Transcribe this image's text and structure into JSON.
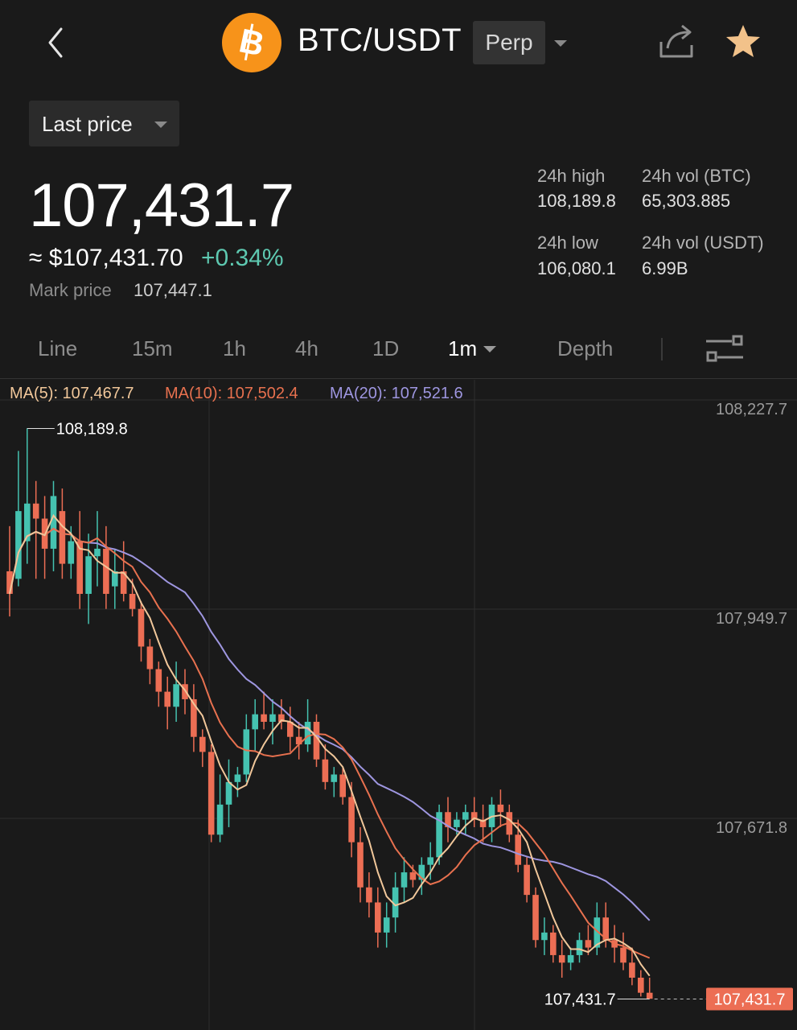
{
  "header": {
    "pair": "BTC/USDT",
    "contract_type": "Perp",
    "icons": [
      "back-icon",
      "bitcoin-icon",
      "chevron-down-icon",
      "share-icon",
      "star-icon"
    ],
    "coin_color": "#f7931a",
    "star_color": "#f2c28a"
  },
  "price_selector": {
    "label": "Last price"
  },
  "price": {
    "last": "107,431.7",
    "usd": "≈ $107,431.70",
    "change": "+0.34%",
    "mark_label": "Mark price",
    "mark_value": "107,447.1"
  },
  "stats": {
    "high_label": "24h high",
    "high_value": "108,189.8",
    "low_label": "24h low",
    "low_value": "106,080.1",
    "vol_btc_label": "24h vol (BTC)",
    "vol_btc_value": "65,303.885",
    "vol_usdt_label": "24h vol (USDT)",
    "vol_usdt_value": "6.99B"
  },
  "tabs": [
    "Line",
    "15m",
    "1h",
    "4h",
    "1D",
    "1m",
    "Depth"
  ],
  "active_tab": "1m",
  "ma_legend": {
    "ma5": "MA(5): 107,467.7",
    "ma10": "MA(10): 107,502.4",
    "ma20": "MA(20): 107,521.6"
  },
  "colors": {
    "up": "#45c2b0",
    "down": "#ec6e54",
    "ma5": "#f1c79a",
    "ma10": "#e8714f",
    "ma20": "#9e96e0"
  },
  "chart_data": {
    "type": "candlestick",
    "y_ticks": [
      "108,227.7",
      "107,949.7",
      "107,671.8"
    ],
    "ylim": [
      107393.7,
      108227.7
    ],
    "high_label": "108,189.8",
    "low_label": "107,431.7",
    "current_price_label": "107,431.7",
    "candles": [
      [
        108000,
        108060,
        107940,
        107970
      ],
      [
        107990,
        108160,
        107980,
        108080
      ],
      [
        108040,
        108190,
        108010,
        108090
      ],
      [
        108090,
        108120,
        107990,
        108070
      ],
      [
        108070,
        108100,
        107990,
        108030
      ],
      [
        108030,
        108120,
        108000,
        108100
      ],
      [
        108080,
        108110,
        107990,
        108010
      ],
      [
        108010,
        108060,
        107990,
        108040
      ],
      [
        108040,
        108080,
        107950,
        107970
      ],
      [
        107970,
        108050,
        107930,
        108020
      ],
      [
        108020,
        108080,
        107980,
        108030
      ],
      [
        108030,
        108060,
        107950,
        107970
      ],
      [
        107980,
        108030,
        107950,
        108000
      ],
      [
        108000,
        108040,
        107960,
        107970
      ],
      [
        107970,
        107990,
        107940,
        107950
      ],
      [
        107950,
        107960,
        107880,
        107900
      ],
      [
        107900,
        107910,
        107850,
        107870
      ],
      [
        107870,
        107880,
        107820,
        107840
      ],
      [
        107840,
        107860,
        107790,
        107820
      ],
      [
        107820,
        107880,
        107800,
        107850
      ],
      [
        107850,
        107870,
        107810,
        107830
      ],
      [
        107830,
        107850,
        107760,
        107780
      ],
      [
        107780,
        107790,
        107740,
        107760
      ],
      [
        107760,
        107770,
        107640,
        107650
      ],
      [
        107650,
        107730,
        107640,
        107690
      ],
      [
        107690,
        107750,
        107660,
        107720
      ],
      [
        107720,
        107740,
        107700,
        107730
      ],
      [
        107730,
        107810,
        107720,
        107790
      ],
      [
        107790,
        107830,
        107760,
        107810
      ],
      [
        107810,
        107840,
        107790,
        107800
      ],
      [
        107800,
        107830,
        107770,
        107810
      ],
      [
        107810,
        107830,
        107790,
        107800
      ],
      [
        107800,
        107820,
        107760,
        107780
      ],
      [
        107780,
        107800,
        107750,
        107770
      ],
      [
        107770,
        107830,
        107760,
        107800
      ],
      [
        107800,
        107810,
        107740,
        107750
      ],
      [
        107750,
        107770,
        107710,
        107720
      ],
      [
        107720,
        107740,
        107700,
        107730
      ],
      [
        107730,
        107740,
        107690,
        107700
      ],
      [
        107700,
        107720,
        107620,
        107640
      ],
      [
        107640,
        107660,
        107560,
        107580
      ],
      [
        107580,
        107600,
        107540,
        107560
      ],
      [
        107560,
        107580,
        107500,
        107520
      ],
      [
        107520,
        107560,
        107500,
        107540
      ],
      [
        107540,
        107600,
        107520,
        107580
      ],
      [
        107580,
        107620,
        107560,
        107600
      ],
      [
        107600,
        107610,
        107580,
        107590
      ],
      [
        107590,
        107620,
        107570,
        107610
      ],
      [
        107610,
        107640,
        107590,
        107620
      ],
      [
        107620,
        107690,
        107610,
        107680
      ],
      [
        107680,
        107700,
        107640,
        107660
      ],
      [
        107660,
        107680,
        107650,
        107670
      ],
      [
        107670,
        107690,
        107650,
        107680
      ],
      [
        107680,
        107700,
        107660,
        107670
      ],
      [
        107670,
        107690,
        107640,
        107660
      ],
      [
        107660,
        107700,
        107640,
        107690
      ],
      [
        107690,
        107710,
        107660,
        107680
      ],
      [
        107680,
        107690,
        107640,
        107650
      ],
      [
        107650,
        107670,
        107600,
        107610
      ],
      [
        107610,
        107620,
        107560,
        107570
      ],
      [
        107570,
        107580,
        107500,
        107510
      ],
      [
        107510,
        107540,
        107490,
        107520
      ],
      [
        107520,
        107530,
        107480,
        107490
      ],
      [
        107490,
        107510,
        107460,
        107480
      ],
      [
        107480,
        107500,
        107470,
        107490
      ],
      [
        107490,
        107520,
        107480,
        107510
      ],
      [
        107510,
        107530,
        107490,
        107500
      ],
      [
        107500,
        107560,
        107490,
        107540
      ],
      [
        107540,
        107560,
        107500,
        107510
      ],
      [
        107510,
        107530,
        107480,
        107500
      ],
      [
        107500,
        107520,
        107470,
        107480
      ],
      [
        107480,
        107500,
        107450,
        107460
      ],
      [
        107460,
        107470,
        107435,
        107440
      ],
      [
        107440,
        107460,
        107432,
        107432
      ]
    ]
  }
}
